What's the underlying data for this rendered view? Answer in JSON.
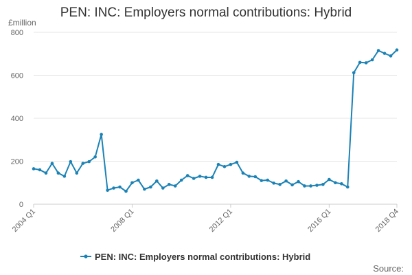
{
  "chart_data": {
    "type": "line",
    "title": "PEN: INC: Employers normal contributions: Hybrid",
    "unit_label": "£million",
    "source_label": "Source:",
    "ylim": [
      0,
      800
    ],
    "y_ticks": [
      0,
      200,
      400,
      600,
      800
    ],
    "x_tick_labels": [
      {
        "label": "2004 Q1",
        "index": 0
      },
      {
        "label": "2008 Q1",
        "index": 16
      },
      {
        "label": "2012 Q1",
        "index": 32
      },
      {
        "label": "2016 Q1",
        "index": 48
      },
      {
        "label": "2018 Q4",
        "index": 59
      }
    ],
    "x": [
      "2004 Q1",
      "2004 Q2",
      "2004 Q3",
      "2004 Q4",
      "2005 Q1",
      "2005 Q2",
      "2005 Q3",
      "2005 Q4",
      "2006 Q1",
      "2006 Q2",
      "2006 Q3",
      "2006 Q4",
      "2007 Q1",
      "2007 Q2",
      "2007 Q3",
      "2007 Q4",
      "2008 Q1",
      "2008 Q2",
      "2008 Q3",
      "2008 Q4",
      "2009 Q1",
      "2009 Q2",
      "2009 Q3",
      "2009 Q4",
      "2010 Q1",
      "2010 Q2",
      "2010 Q3",
      "2010 Q4",
      "2011 Q1",
      "2011 Q2",
      "2011 Q3",
      "2011 Q4",
      "2012 Q1",
      "2012 Q2",
      "2012 Q3",
      "2012 Q4",
      "2013 Q1",
      "2013 Q2",
      "2013 Q3",
      "2013 Q4",
      "2014 Q1",
      "2014 Q2",
      "2014 Q3",
      "2014 Q4",
      "2015 Q1",
      "2015 Q2",
      "2015 Q3",
      "2015 Q4",
      "2016 Q1",
      "2016 Q2",
      "2016 Q3",
      "2016 Q4",
      "2017 Q1",
      "2017 Q2",
      "2017 Q3",
      "2017 Q4",
      "2018 Q1",
      "2018 Q2",
      "2018 Q3",
      "2018 Q4"
    ],
    "series": [
      {
        "name": "PEN: INC: Employers normal contributions: Hybrid",
        "color": "#1b82b5",
        "values": [
          165,
          160,
          145,
          190,
          145,
          130,
          198,
          145,
          190,
          198,
          220,
          325,
          65,
          75,
          80,
          60,
          100,
          112,
          70,
          80,
          108,
          75,
          92,
          85,
          112,
          133,
          120,
          130,
          125,
          125,
          185,
          175,
          185,
          195,
          145,
          130,
          128,
          110,
          112,
          98,
          92,
          108,
          90,
          105,
          85,
          85,
          88,
          92,
          115,
          100,
          95,
          80,
          612,
          660,
          658,
          672,
          715,
          702,
          690,
          718
        ]
      }
    ],
    "grid": true,
    "legend_position": "bottom"
  }
}
